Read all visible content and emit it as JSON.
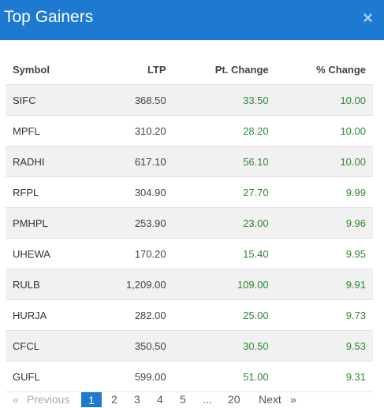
{
  "header": {
    "title": "Top Gainers",
    "close_label": "×"
  },
  "table": {
    "columns": [
      "Symbol",
      "LTP",
      "Pt. Change",
      "% Change"
    ],
    "rows": [
      {
        "symbol": "SIFC",
        "ltp": "368.50",
        "pt_change": "33.50",
        "pct_change": "10.00"
      },
      {
        "symbol": "MPFL",
        "ltp": "310.20",
        "pt_change": "28.20",
        "pct_change": "10.00"
      },
      {
        "symbol": "RADHI",
        "ltp": "617.10",
        "pt_change": "56.10",
        "pct_change": "10.00"
      },
      {
        "symbol": "RFPL",
        "ltp": "304.90",
        "pt_change": "27.70",
        "pct_change": "9.99"
      },
      {
        "symbol": "PMHPL",
        "ltp": "253.90",
        "pt_change": "23.00",
        "pct_change": "9.96"
      },
      {
        "symbol": "UHEWA",
        "ltp": "170.20",
        "pt_change": "15.40",
        "pct_change": "9.95"
      },
      {
        "symbol": "RULB",
        "ltp": "1,209.00",
        "pt_change": "109.00",
        "pct_change": "9.91"
      },
      {
        "symbol": "HURJA",
        "ltp": "282.00",
        "pt_change": "25.00",
        "pct_change": "9.73"
      },
      {
        "symbol": "CFCL",
        "ltp": "350.50",
        "pt_change": "30.50",
        "pct_change": "9.53"
      },
      {
        "symbol": "GUFL",
        "ltp": "599.00",
        "pt_change": "51.00",
        "pct_change": "9.31"
      }
    ]
  },
  "pagination": {
    "prev_arrow": "«",
    "prev_label": "Previous",
    "pages": [
      "1",
      "2",
      "3",
      "4",
      "5"
    ],
    "ellipsis": "...",
    "last_page": "20",
    "next_label": "Next",
    "next_arrow": "»",
    "current_page": "1"
  },
  "colors": {
    "header_bg": "#1e7ad0",
    "positive": "#2f8a2f"
  }
}
